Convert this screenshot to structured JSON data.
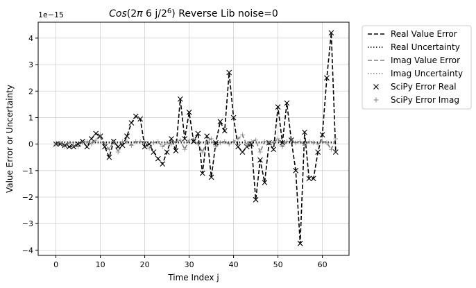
{
  "chart_data": {
    "type": "line",
    "title": "Cos(2π 6 j/2⁶) Reverse Lib noise=0",
    "title_parts": {
      "func": "Cos",
      "open": "(2",
      "pi": "π",
      "mid": " 6 j/2",
      "exp": "6",
      "close": ")",
      "rest": " Reverse Lib noise=0"
    },
    "xlabel": "Time Index j",
    "ylabel": "Value Error or Uncertainty",
    "offset_text": "1e−15",
    "xlim": [
      -4,
      66
    ],
    "ylim": [
      -4.2,
      4.6
    ],
    "x_ticks": [
      0,
      10,
      20,
      30,
      40,
      50,
      60
    ],
    "x_tick_labels": [
      "0",
      "10",
      "20",
      "30",
      "40",
      "50",
      "60"
    ],
    "y_ticks": [
      -4,
      -3,
      -2,
      -1,
      0,
      1,
      2,
      3,
      4
    ],
    "y_tick_labels": [
      "−4",
      "−3",
      "−2",
      "−1",
      "0",
      "1",
      "2",
      "3",
      "4"
    ],
    "grid": true,
    "legend_position": "outside right, top",
    "x": [
      0,
      1,
      2,
      3,
      4,
      5,
      6,
      7,
      8,
      9,
      10,
      11,
      12,
      13,
      14,
      15,
      16,
      17,
      18,
      19,
      20,
      21,
      22,
      23,
      24,
      25,
      26,
      27,
      28,
      29,
      30,
      31,
      32,
      33,
      34,
      35,
      36,
      37,
      38,
      39,
      40,
      41,
      42,
      43,
      44,
      45,
      46,
      47,
      48,
      49,
      50,
      51,
      52,
      53,
      54,
      55,
      56,
      57,
      58,
      59,
      60,
      61,
      62,
      63
    ],
    "series": [
      {
        "name": "Real Value Error",
        "style": "dashed",
        "color": "#000000",
        "values": [
          0,
          0,
          -0.05,
          -0.1,
          -0.1,
          0,
          0.1,
          -0.1,
          0.2,
          0.4,
          0.3,
          -0.1,
          -0.5,
          0.1,
          -0.1,
          -0.05,
          0.3,
          0.8,
          1.05,
          0.95,
          -0.1,
          0,
          -0.3,
          -0.55,
          -0.75,
          -0.3,
          0.2,
          -0.25,
          1.7,
          0.2,
          1.2,
          0.1,
          0.4,
          -1.1,
          0.3,
          -1.25,
          0.05,
          0.85,
          0.5,
          2.7,
          1.0,
          -0.1,
          -0.3,
          -0.1,
          0,
          -2.1,
          -0.6,
          -1.45,
          0.05,
          -0.2,
          1.4,
          0.05,
          1.55,
          0.15,
          -1.0,
          -3.75,
          0.45,
          -1.3,
          -1.3,
          -0.3,
          0.35,
          2.5,
          4.2,
          -0.3
        ]
      },
      {
        "name": "Real Uncertainty",
        "style": "dotted",
        "color": "#000000",
        "values": [
          0.05,
          0.05,
          0.05,
          0.05,
          0.05,
          0.05,
          0.05,
          0.05,
          0.05,
          0.05,
          0.05,
          0.05,
          0.05,
          0.05,
          0.05,
          0.05,
          0.05,
          0.05,
          0.05,
          0.05,
          0.05,
          0.05,
          0.05,
          0.05,
          0.05,
          0.05,
          0.05,
          0.05,
          0.05,
          0.05,
          0.05,
          0.05,
          0.05,
          0.05,
          0.05,
          0.05,
          0.05,
          0.05,
          0.05,
          0.05,
          0.05,
          0.05,
          0.05,
          0.05,
          0.05,
          0.05,
          0.05,
          0.05,
          0.05,
          0.05,
          0.05,
          0.05,
          0.05,
          0.05,
          0.05,
          0.05,
          0.05,
          0.05,
          0.05,
          0.05,
          0.05,
          0.05,
          0.05,
          0.05
        ]
      },
      {
        "name": "Imag Value Error",
        "style": "dashed",
        "color": "#808080",
        "values": [
          0,
          0.05,
          -0.1,
          0.05,
          -0.05,
          -0.1,
          0.05,
          0.1,
          0,
          0.15,
          0.35,
          0,
          -0.2,
          0.1,
          -0.3,
          0.1,
          0.1,
          -0.05,
          0.1,
          0.1,
          0.1,
          -0.15,
          0.05,
          0.1,
          -0.1,
          0.05,
          0,
          0.1,
          0.15,
          -0.2,
          0.15,
          0.2,
          0,
          -0.3,
          0.1,
          0.2,
          -0.1,
          0.05,
          0.1,
          0,
          0.1,
          0.2,
          0.35,
          -0.05,
          0.1,
          0.15,
          -0.3,
          0.1,
          0.05,
          0.05,
          0.2,
          -0.1,
          0.1,
          0.15,
          0.05,
          0.1,
          -0.05,
          0.1,
          0.05,
          0,
          0.1,
          0.05,
          -0.2,
          0.2
        ]
      },
      {
        "name": "Imag Uncertainty",
        "style": "dotted",
        "color": "#808080",
        "values": [
          0.1,
          0.1,
          0.1,
          0.1,
          0.1,
          0.1,
          0.1,
          0.1,
          0.1,
          0.1,
          0.1,
          0.1,
          0.1,
          0.1,
          0.1,
          0.1,
          0.1,
          0.1,
          0.1,
          0.1,
          0.1,
          0.1,
          0.1,
          0.1,
          0.1,
          0.1,
          0.1,
          0.1,
          0.1,
          0.1,
          0.1,
          0.1,
          0.1,
          0.1,
          0.1,
          0.1,
          0.1,
          0.1,
          0.1,
          0.1,
          0.1,
          0.1,
          0.1,
          0.1,
          0.1,
          0.1,
          0.1,
          0.1,
          0.1,
          0.1,
          0.1,
          0.1,
          0.1,
          0.1,
          0.1,
          0.1,
          0.1,
          0.1,
          0.1,
          0.1,
          0.1,
          0.1,
          0.1,
          0.1
        ]
      },
      {
        "name": "SciPy Error Real",
        "style": "marker-x",
        "color": "#000000",
        "values": [
          0,
          0,
          -0.05,
          -0.1,
          -0.1,
          0,
          0.1,
          -0.1,
          0.2,
          0.4,
          0.3,
          -0.1,
          -0.5,
          0.1,
          -0.1,
          -0.05,
          0.3,
          0.8,
          1.05,
          0.95,
          -0.1,
          0,
          -0.3,
          -0.55,
          -0.75,
          -0.3,
          0.2,
          -0.25,
          1.7,
          0.2,
          1.2,
          0.1,
          0.4,
          -1.1,
          0.3,
          -1.25,
          0.05,
          0.85,
          0.5,
          2.7,
          1.0,
          -0.1,
          -0.3,
          -0.1,
          0,
          -2.1,
          -0.6,
          -1.45,
          0.05,
          -0.2,
          1.4,
          0.05,
          1.55,
          0.15,
          -1.0,
          -3.75,
          0.45,
          -1.3,
          -1.3,
          -0.3,
          0.35,
          2.5,
          4.2,
          -0.3
        ]
      },
      {
        "name": "SciPy Error Imag",
        "style": "marker-plus",
        "color": "#808080",
        "values": [
          0,
          0.05,
          -0.1,
          0.05,
          -0.05,
          -0.1,
          0.05,
          0.1,
          0,
          0.15,
          0.35,
          0,
          -0.2,
          0.1,
          -0.3,
          0.1,
          0.1,
          -0.05,
          0.1,
          0.1,
          0.1,
          -0.15,
          0.05,
          0.1,
          -0.1,
          0.05,
          0,
          0.1,
          0.15,
          -0.2,
          0.15,
          0.2,
          0,
          -0.3,
          0.1,
          0.2,
          -0.1,
          0.05,
          0.1,
          0,
          0.1,
          0.2,
          0.35,
          -0.05,
          0.1,
          0.15,
          -0.3,
          0.1,
          0.05,
          0.05,
          0.2,
          -0.1,
          0.1,
          0.15,
          0.05,
          0.1,
          -0.05,
          0.1,
          0.05,
          0,
          0.1,
          0.05,
          -0.2,
          0.2
        ]
      }
    ]
  }
}
